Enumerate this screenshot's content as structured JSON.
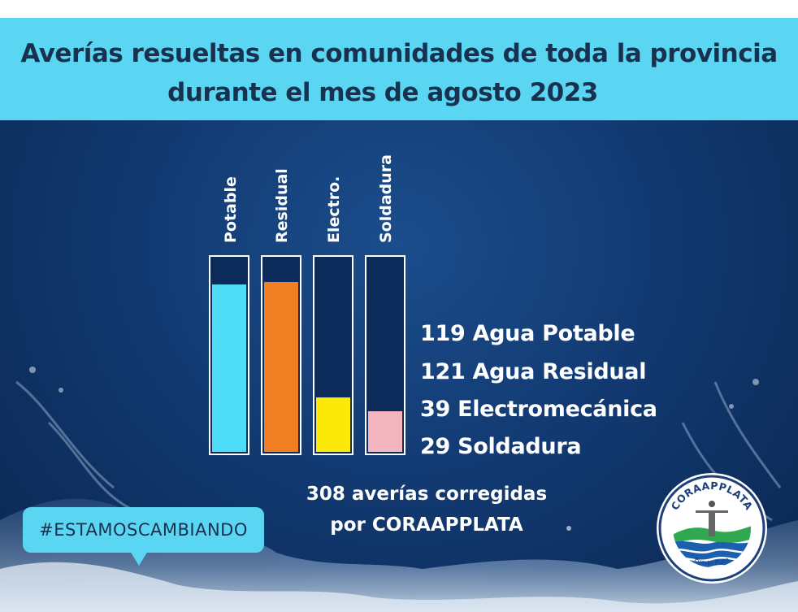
{
  "title": {
    "line1": "Averías resueltas en comunidades de toda la provincia",
    "line2": "durante  el mes de agosto 2023"
  },
  "chart_data": {
    "type": "bar",
    "categories": [
      "Potable",
      "Residual",
      "Electro.",
      "Soldadura"
    ],
    "values": [
      119,
      121,
      39,
      29
    ],
    "colors": [
      "#4fdcf6",
      "#ef7f22",
      "#fce90a",
      "#f3b6be"
    ],
    "ylim": [
      0,
      140
    ],
    "grid": false,
    "legend_lines": [
      "119 Agua Potable",
      "121 Agua Residual",
      "39 Electromecánica",
      "29 Soldadura"
    ]
  },
  "summary": {
    "line1": "308 averías corregidas",
    "line2": "por CORAAPPLATA"
  },
  "hashtag": "#ESTAMOSCAMBIANDO",
  "logo": {
    "name": "CORAAPPLATA",
    "location": "Puerto Plata"
  },
  "colors": {
    "band": "#5ad5f2",
    "background": "#123a72",
    "title_text": "#17314f"
  }
}
